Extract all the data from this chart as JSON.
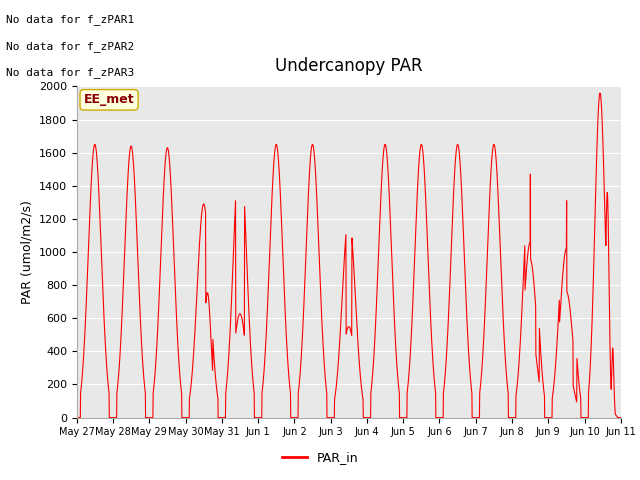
{
  "title": "Undercanopy PAR",
  "ylabel": "PAR (umol/m2/s)",
  "legend_label": "PAR_in",
  "line_color": "red",
  "bg_color": "#e8e8e8",
  "ylim": [
    0,
    2000
  ],
  "yticks": [
    0,
    200,
    400,
    600,
    800,
    1000,
    1200,
    1400,
    1600,
    1800,
    2000
  ],
  "text_lines": [
    "No data for f_zPAR1",
    "No data for f_zPAR2",
    "No data for f_zPAR3"
  ],
  "ee_met_label": "EE_met",
  "xlabel_dates": [
    "May 27",
    "May 28",
    "May 29",
    "May 30",
    "May 31",
    "Jun 1",
    "Jun 2",
    "Jun 3",
    "Jun 4",
    "Jun 5",
    "Jun 6",
    "Jun 7",
    "Jun 8",
    "Jun 9",
    "Jun 10",
    "Jun 11"
  ],
  "num_days": 15,
  "figsize": [
    6.4,
    4.8
  ],
  "dpi": 100
}
